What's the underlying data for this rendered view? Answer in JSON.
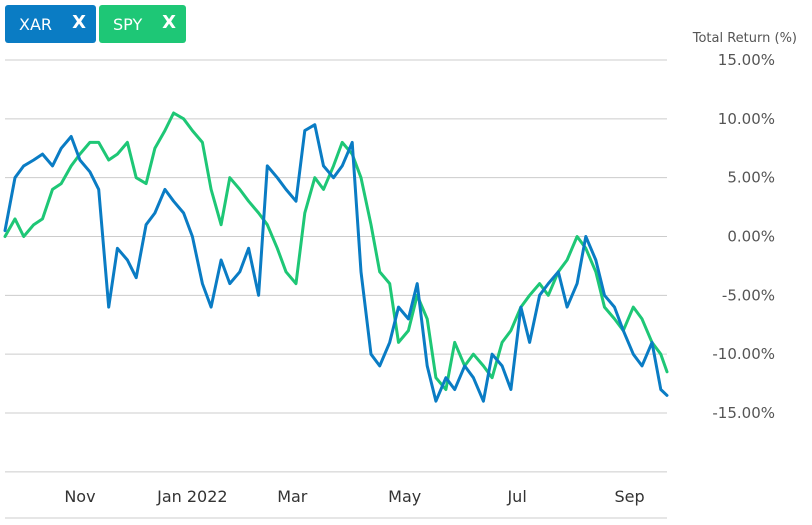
{
  "legend": [
    {
      "ticker": "XAR",
      "close": "X",
      "color": "#0a7cc4"
    },
    {
      "ticker": "SPY",
      "close": "X",
      "color": "#1ec776"
    }
  ],
  "chart_data": {
    "type": "line",
    "ylabel": "Total Return (%)",
    "ylim": [
      -20,
      15
    ],
    "yticks": [
      15,
      10,
      5,
      0,
      -5,
      -10,
      -15
    ],
    "ytick_labels": [
      "15.00%",
      "10.00%",
      "5.00%",
      "0.00%",
      "-5.00%",
      "-10.00%",
      "-15.00%"
    ],
    "xlim": [
      0,
      53
    ],
    "xticks": [
      6,
      15,
      23,
      32,
      41,
      50
    ],
    "xtick_labels": [
      "Nov",
      "Jan 2022",
      "Mar",
      "May",
      "Jul",
      "Sep"
    ],
    "grid": true,
    "legend_position": "top-left",
    "series": [
      {
        "name": "XAR",
        "color": "#0a7cc4",
        "x": [
          0,
          0.8,
          1.5,
          2.3,
          3,
          3.8,
          4.5,
          5.3,
          6,
          6.8,
          7.5,
          8.3,
          9,
          9.8,
          10.5,
          11.3,
          12,
          12.8,
          13.5,
          14.3,
          15,
          15.8,
          16.5,
          17.3,
          18,
          18.8,
          19.5,
          20.3,
          21,
          21.8,
          22.5,
          23.3,
          24,
          24.8,
          25.5,
          26.3,
          27,
          27.8,
          28.5,
          29.3,
          30,
          30.8,
          31.5,
          32.3,
          33,
          33.8,
          34.5,
          35.3,
          36,
          36.8,
          37.5,
          38.3,
          39,
          39.8,
          40.5,
          41.3,
          42,
          42.8,
          43.5,
          44.3,
          45,
          45.8,
          46.5,
          47.3,
          48,
          48.8,
          49.5,
          50.3,
          51,
          51.8,
          52.5,
          53
        ],
        "values": [
          0.5,
          5,
          6,
          6.5,
          7,
          6,
          7.5,
          8.5,
          6.5,
          5.5,
          4,
          -6,
          -1,
          -2,
          -3.5,
          1,
          2,
          4,
          3,
          2,
          0,
          -4,
          -6,
          -2,
          -4,
          -3,
          -1,
          -5,
          6,
          5,
          4,
          3,
          9,
          9.5,
          6,
          5,
          6,
          8,
          -3,
          -10,
          -11,
          -9,
          -6,
          -7,
          -4,
          -11,
          -14,
          -12,
          -13,
          -11,
          -12,
          -14,
          -10,
          -11,
          -13,
          -6,
          -9,
          -5,
          -4,
          -3,
          -6,
          -4,
          0,
          -2,
          -5,
          -6,
          -8,
          -10,
          -11,
          -9,
          -13,
          -13.5
        ]
      },
      {
        "name": "SPY",
        "color": "#1ec776",
        "x": [
          0,
          0.8,
          1.5,
          2.3,
          3,
          3.8,
          4.5,
          5.3,
          6,
          6.8,
          7.5,
          8.3,
          9,
          9.8,
          10.5,
          11.3,
          12,
          12.8,
          13.5,
          14.3,
          15,
          15.8,
          16.5,
          17.3,
          18,
          18.8,
          19.5,
          20.3,
          21,
          21.8,
          22.5,
          23.3,
          24,
          24.8,
          25.5,
          26.3,
          27,
          27.8,
          28.5,
          29.3,
          30,
          30.8,
          31.5,
          32.3,
          33,
          33.8,
          34.5,
          35.3,
          36,
          36.8,
          37.5,
          38.3,
          39,
          39.8,
          40.5,
          41.3,
          42,
          42.8,
          43.5,
          44.3,
          45,
          45.8,
          46.5,
          47.3,
          48,
          48.8,
          49.5,
          50.3,
          51,
          51.8,
          52.5,
          53
        ],
        "values": [
          0,
          1.5,
          0,
          1,
          1.5,
          4,
          4.5,
          6,
          7,
          8,
          8,
          6.5,
          7,
          8,
          5,
          4.5,
          7.5,
          9,
          10.5,
          10,
          9,
          8,
          4,
          1,
          5,
          4,
          3,
          2,
          1,
          -1,
          -3,
          -4,
          2,
          5,
          4,
          6,
          8,
          7,
          5,
          1,
          -3,
          -4,
          -9,
          -8,
          -5,
          -7,
          -12,
          -13,
          -9,
          -11,
          -10,
          -11,
          -12,
          -9,
          -8,
          -6,
          -5,
          -4,
          -5,
          -3,
          -2,
          0,
          -1,
          -3,
          -6,
          -7,
          -8,
          -6,
          -7,
          -9,
          -10,
          -11.5
        ]
      }
    ]
  }
}
